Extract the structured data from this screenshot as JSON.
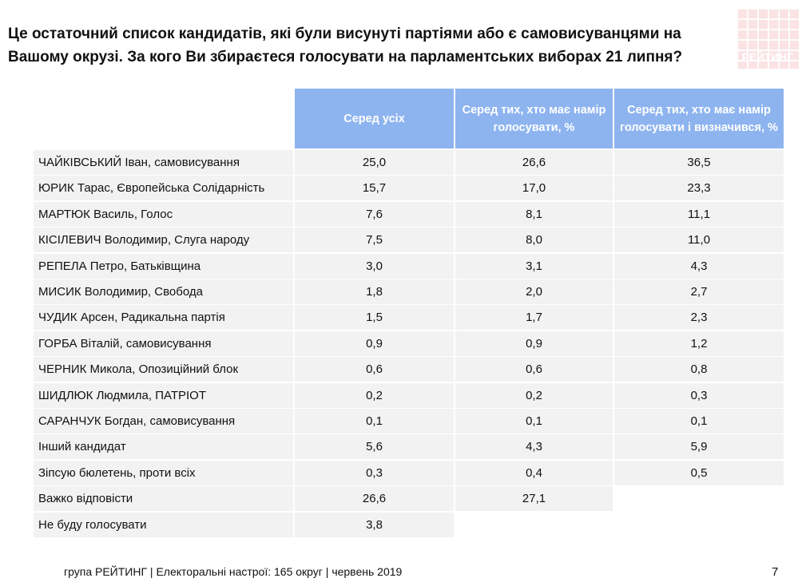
{
  "title": "Це остаточний список кандидатів, які були висунуті партіями або є самовисуванцями на Вашому окрузі. За кого Ви збираєтеся голосувати на парламентських виборах 21 липня?",
  "logo_text": "РЕЙТИНГ",
  "columns": [
    "Серед усіх",
    "Серед тих, хто має намір голосувати, %",
    "Серед тих, хто має намір голосувати і визначився, %"
  ],
  "rows": [
    {
      "name": "ЧАЙКІВСЬКИЙ Іван, самовисування",
      "v1": "25,0",
      "v2": "26,6",
      "v3": "36,5"
    },
    {
      "name": "ЮРИК Тарас, Європейська Солідарність",
      "v1": "15,7",
      "v2": "17,0",
      "v3": "23,3"
    },
    {
      "name": "МАРТЮК Василь, Голос",
      "v1": "7,6",
      "v2": "8,1",
      "v3": "11,1"
    },
    {
      "name": "КІСІЛЕВИЧ Володимир, Слуга народу",
      "v1": "7,5",
      "v2": "8,0",
      "v3": "11,0"
    },
    {
      "name": "РЕПЕЛА Петро, Батьківщина",
      "v1": "3,0",
      "v2": "3,1",
      "v3": "4,3"
    },
    {
      "name": "МИСИК Володимир, Свобода",
      "v1": "1,8",
      "v2": "2,0",
      "v3": "2,7"
    },
    {
      "name": "ЧУДИК Арсен,  Радикальна партія",
      "v1": "1,5",
      "v2": "1,7",
      "v3": "2,3"
    },
    {
      "name": "ГОРБА Віталій, самовисування",
      "v1": "0,9",
      "v2": "0,9",
      "v3": "1,2"
    },
    {
      "name": "ЧЕРНИК Микола, Опозиційний блок",
      "v1": "0,6",
      "v2": "0,6",
      "v3": "0,8"
    },
    {
      "name": "ШИДЛЮК Людмила, ПАТРІОТ",
      "v1": "0,2",
      "v2": "0,2",
      "v3": "0,3"
    },
    {
      "name": "САРАНЧУК Богдан, самовисування",
      "v1": "0,1",
      "v2": "0,1",
      "v3": "0,1"
    },
    {
      "name": "Інший кандидат",
      "v1": "5,6",
      "v2": "4,3",
      "v3": "5,9"
    },
    {
      "name": "Зіпсую бюлетень, проти всіх",
      "v1": "0,3",
      "v2": "0,4",
      "v3": "0,5"
    },
    {
      "name": "Важко відповісти",
      "v1": "26,6",
      "v2": "27,1",
      "v3": ""
    },
    {
      "name": "Не буду голосувати",
      "v1": "3,8",
      "v2": "",
      "v3": ""
    }
  ],
  "footer": "група РЕЙТИНГ | Електоральні настрої: 165 округ  | червень 2019",
  "page_number": "7",
  "colors": {
    "header_bg": "#8eb4f0",
    "row_bg": "#f2f2f2",
    "logo_bg": "#fbe3e3"
  }
}
